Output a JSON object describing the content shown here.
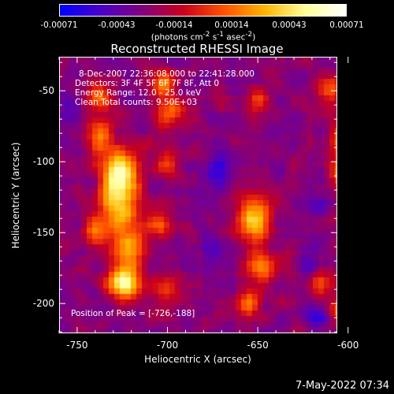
{
  "colorbar": {
    "ticks": [
      "-0.00071",
      "-0.00043",
      "-0.00014",
      "0.00014",
      "0.00043",
      "0.00071"
    ],
    "unit_html": "(photons cm<sup>-2</sup> s<sup>-1</sup> asec<sup>-2</sup>)",
    "colors": [
      "#0000ff",
      "#4b00c8",
      "#800080",
      "#c8001e",
      "#ff5000",
      "#ffb400",
      "#ffff96",
      "#ffffff"
    ]
  },
  "title": "Reconstructed RHESSI Image",
  "annotations": [
    "8-Dec-2007 22:36:08.000 to 22:41:28.000",
    "Detectors: 3F 4F 5F 6F 7F 8F, Att 0",
    "Energy Range: 12.0 - 25.0 keV",
    "Clean     Total counts: 9.50E+03"
  ],
  "peak_label": "Position of Peak = [-726,-188]",
  "footer_timestamp": "7-May-2022 07:34",
  "chart_data": {
    "type": "heatmap",
    "title": "Reconstructed RHESSI Image",
    "xlabel": "Heliocentric X (arcsec)",
    "ylabel": "Heliocentric Y (arcsec)",
    "xlim": [
      -760,
      -606
    ],
    "ylim": [
      -221,
      -26
    ],
    "x_ticks": [
      -750,
      -700,
      -650,
      -600
    ],
    "y_ticks": [
      -50,
      -100,
      -150,
      -200
    ],
    "x_tick_labels": [
      "-750",
      "-700",
      "-650",
      "-600"
    ],
    "y_tick_labels": [
      "-50",
      "-100",
      "-150",
      "-200"
    ],
    "value_range": [
      -0.00071,
      0.00071
    ],
    "peak_position": [
      -726,
      -188
    ]
  }
}
